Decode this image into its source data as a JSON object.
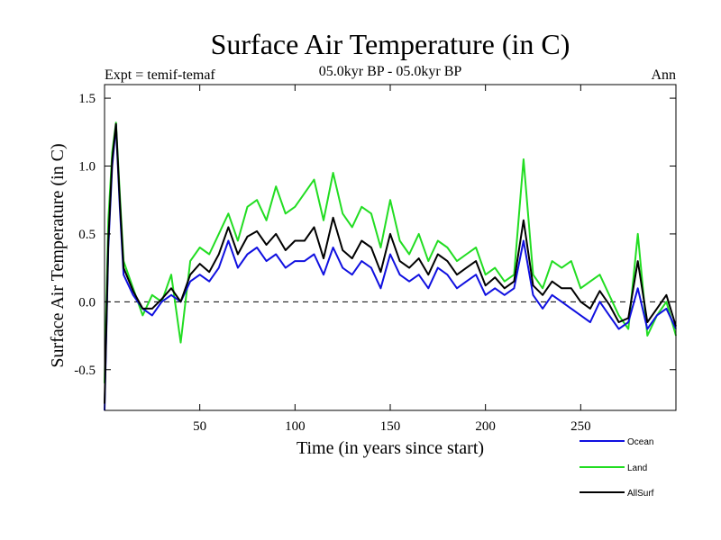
{
  "chart_data": {
    "type": "line",
    "title": "Surface Air Temperature (in C)",
    "subtitle": "05.0kyr BP - 05.0kyr BP",
    "left_header": "Expt = temif-temaf",
    "right_header": "Ann",
    "xlabel": "Time (in years since start)",
    "ylabel": "Surface Air Temperature (in C)",
    "xlim": [
      0,
      300
    ],
    "ylim": [
      -0.8,
      1.6
    ],
    "x_ticks": [
      50,
      100,
      150,
      200,
      250
    ],
    "x_tick_labels": [
      "50",
      "100",
      "150",
      "200",
      "250"
    ],
    "y_ticks": [
      -0.5,
      0.0,
      0.5,
      1.0,
      1.5
    ],
    "y_tick_labels": [
      "-0.5",
      "0.0",
      "0.5",
      "1.0",
      "1.5"
    ],
    "zero_line": true,
    "legend_position": "bottom-right",
    "colors": {
      "Ocean": "#1010e0",
      "Land": "#22dd22",
      "AllSurf": "#000000"
    },
    "series": [
      {
        "name": "Ocean",
        "x": [
          0,
          2,
          4,
          6,
          8,
          10,
          15,
          20,
          25,
          30,
          35,
          40,
          45,
          50,
          55,
          60,
          65,
          70,
          75,
          80,
          85,
          90,
          95,
          100,
          105,
          110,
          115,
          120,
          125,
          130,
          135,
          140,
          145,
          150,
          155,
          160,
          165,
          170,
          175,
          180,
          185,
          190,
          195,
          200,
          205,
          210,
          215,
          220,
          225,
          230,
          235,
          240,
          245,
          250,
          255,
          260,
          265,
          270,
          275,
          280,
          285,
          290,
          295,
          300
        ],
        "y": [
          -0.8,
          0.4,
          1.0,
          1.3,
          0.7,
          0.2,
          0.05,
          -0.05,
          -0.1,
          0.0,
          0.05,
          0.0,
          0.15,
          0.2,
          0.15,
          0.25,
          0.45,
          0.25,
          0.35,
          0.4,
          0.3,
          0.35,
          0.25,
          0.3,
          0.3,
          0.35,
          0.2,
          0.4,
          0.25,
          0.2,
          0.3,
          0.25,
          0.1,
          0.35,
          0.2,
          0.15,
          0.2,
          0.1,
          0.25,
          0.2,
          0.1,
          0.15,
          0.2,
          0.05,
          0.1,
          0.05,
          0.1,
          0.45,
          0.05,
          -0.05,
          0.05,
          0.0,
          -0.05,
          -0.1,
          -0.15,
          0.0,
          -0.1,
          -0.2,
          -0.15,
          0.1,
          -0.2,
          -0.1,
          -0.05,
          -0.2
        ]
      },
      {
        "name": "Land",
        "x": [
          0,
          2,
          4,
          6,
          8,
          10,
          15,
          20,
          25,
          30,
          35,
          40,
          45,
          50,
          55,
          60,
          65,
          70,
          75,
          80,
          85,
          90,
          95,
          100,
          105,
          110,
          115,
          120,
          125,
          130,
          135,
          140,
          145,
          150,
          155,
          160,
          165,
          170,
          175,
          180,
          185,
          190,
          195,
          200,
          205,
          210,
          215,
          220,
          225,
          230,
          235,
          240,
          245,
          250,
          255,
          260,
          265,
          270,
          275,
          280,
          285,
          290,
          295,
          300
        ],
        "y": [
          -0.6,
          0.6,
          1.1,
          1.32,
          0.8,
          0.3,
          0.1,
          -0.1,
          0.05,
          0.0,
          0.2,
          -0.3,
          0.3,
          0.4,
          0.35,
          0.5,
          0.65,
          0.45,
          0.7,
          0.75,
          0.6,
          0.85,
          0.65,
          0.7,
          0.8,
          0.9,
          0.6,
          0.95,
          0.65,
          0.55,
          0.7,
          0.65,
          0.4,
          0.75,
          0.45,
          0.35,
          0.5,
          0.3,
          0.45,
          0.4,
          0.3,
          0.35,
          0.4,
          0.2,
          0.25,
          0.15,
          0.2,
          1.05,
          0.2,
          0.1,
          0.3,
          0.25,
          0.3,
          0.1,
          0.15,
          0.2,
          0.05,
          -0.1,
          -0.2,
          0.5,
          -0.25,
          -0.1,
          0.0,
          -0.25
        ]
      },
      {
        "name": "AllSurf",
        "x": [
          0,
          2,
          4,
          6,
          8,
          10,
          15,
          20,
          25,
          30,
          35,
          40,
          45,
          50,
          55,
          60,
          65,
          70,
          75,
          80,
          85,
          90,
          95,
          100,
          105,
          110,
          115,
          120,
          125,
          130,
          135,
          140,
          145,
          150,
          155,
          160,
          165,
          170,
          175,
          180,
          185,
          190,
          195,
          200,
          205,
          210,
          215,
          220,
          225,
          230,
          235,
          240,
          245,
          250,
          255,
          260,
          265,
          270,
          275,
          280,
          285,
          290,
          295,
          300
        ],
        "y": [
          -0.75,
          0.45,
          1.05,
          1.31,
          0.75,
          0.25,
          0.08,
          -0.05,
          -0.05,
          0.02,
          0.1,
          0.0,
          0.2,
          0.28,
          0.22,
          0.35,
          0.55,
          0.35,
          0.48,
          0.52,
          0.42,
          0.5,
          0.38,
          0.45,
          0.45,
          0.55,
          0.32,
          0.62,
          0.38,
          0.32,
          0.45,
          0.4,
          0.22,
          0.5,
          0.3,
          0.25,
          0.32,
          0.2,
          0.35,
          0.3,
          0.2,
          0.25,
          0.3,
          0.12,
          0.18,
          0.1,
          0.15,
          0.6,
          0.12,
          0.05,
          0.15,
          0.1,
          0.1,
          0.0,
          -0.05,
          0.08,
          -0.02,
          -0.15,
          -0.12,
          0.3,
          -0.15,
          -0.05,
          0.05,
          -0.18
        ]
      }
    ]
  }
}
